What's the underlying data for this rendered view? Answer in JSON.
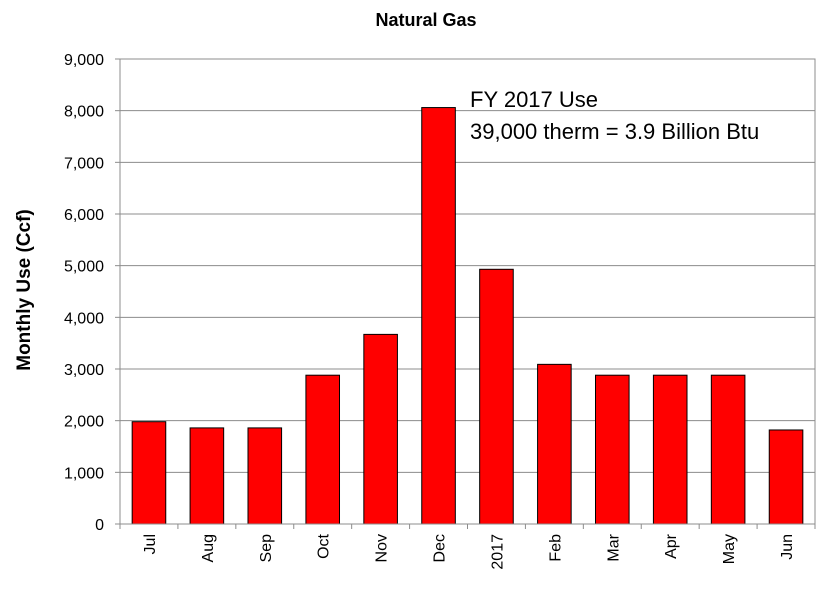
{
  "chart_data": {
    "type": "bar",
    "title": "Natural Gas",
    "xlabel": "",
    "ylabel": "Monthly Use  (Ccf)",
    "ylim": [
      0,
      9000
    ],
    "ytick_step": 1000,
    "ytick_labels": [
      "0",
      "1,000",
      "2,000",
      "3,000",
      "4,000",
      "5,000",
      "6,000",
      "7,000",
      "8,000",
      "9,000"
    ],
    "grid": true,
    "categories": [
      "Jul",
      "Aug",
      "Sep",
      "Oct",
      "Nov",
      "Dec",
      "2017",
      "Feb",
      "Mar",
      "Apr",
      "May",
      "Jun"
    ],
    "values": [
      1980,
      1860,
      1860,
      2880,
      3670,
      8060,
      4930,
      3090,
      2880,
      2880,
      2880,
      1820
    ],
    "bar_color": "#ff0000",
    "annotations": [
      "FY 2017 Use",
      "39,000 therm = 3.9 Billion Btu"
    ]
  }
}
